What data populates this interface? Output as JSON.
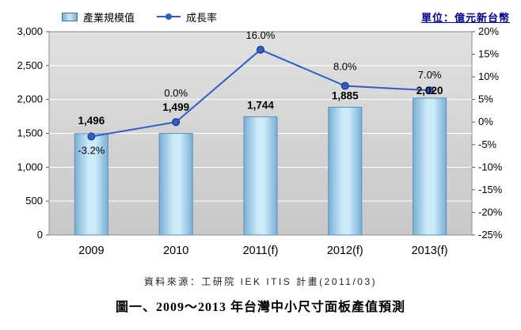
{
  "header": {
    "legend": [
      {
        "label": "產業規模值",
        "type": "bar"
      },
      {
        "label": "成長率",
        "type": "line"
      }
    ],
    "unit_label": "單位：億元新台幣"
  },
  "chart_data": {
    "type": "bar+line",
    "categories": [
      "2009",
      "2010",
      "2011(f)",
      "2012(f)",
      "2013(f)"
    ],
    "series": [
      {
        "name": "產業規模值",
        "type": "bar",
        "axis": "left",
        "values": [
          1496,
          1499,
          1744,
          1885,
          2020
        ],
        "labels": [
          "1,496",
          "1,499",
          "1,744",
          "1,885",
          "2,020"
        ]
      },
      {
        "name": "成長率",
        "type": "line",
        "axis": "right",
        "values": [
          -3.2,
          0.0,
          16.0,
          8.0,
          7.0
        ],
        "labels": [
          "-3.2%",
          "0.0%",
          "16.0%",
          "8.0%",
          "7.0%"
        ]
      }
    ],
    "left_axis": {
      "min": 0,
      "max": 3000,
      "step": 500,
      "tick_labels": [
        "0",
        "500",
        "1,000",
        "1,500",
        "2,000",
        "2,500",
        "3,000"
      ]
    },
    "right_axis": {
      "min": -25,
      "max": 20,
      "step": 5,
      "tick_labels": [
        "-25%",
        "-20%",
        "-15%",
        "-10%",
        "-5%",
        "0%",
        "5%",
        "10%",
        "15%",
        "20%"
      ]
    },
    "grid": true,
    "legend_position": "top",
    "colors": {
      "bar_fill_light": "#CDEAF9",
      "bar_fill_dark": "#7AAFD4",
      "bar_border": "#5A8FB8",
      "line": "#2E5EC4",
      "marker": "#2E5EC4",
      "plot_bg_top": "#E0E0E0",
      "plot_bg_bottom": "#C8C8C8",
      "gridline": "#FFFFFF"
    }
  },
  "footer": {
    "source": "資料來源：工研院 IEK ITIS 計畫(2011/03)",
    "title": "圖一、2009～2013 年台灣中小尺寸面板產值預測"
  }
}
